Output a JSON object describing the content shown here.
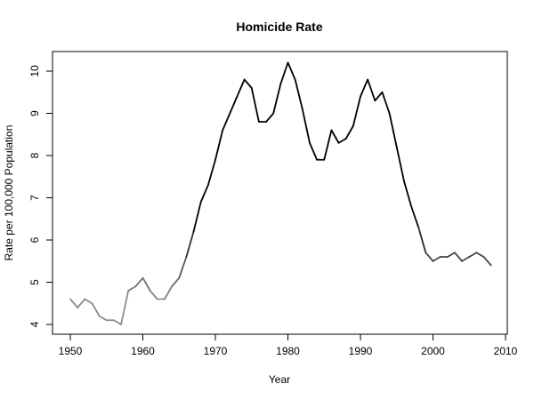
{
  "chart_data": {
    "type": "line",
    "title": "Homicide Rate",
    "xlabel": "Year",
    "ylabel": "Rate per 100,000 Population",
    "xlim": [
      1948,
      2010.2
    ],
    "ylim": [
      3.77,
      10.45
    ],
    "xticks": [
      1950,
      1960,
      1970,
      1980,
      1990,
      2000,
      2010
    ],
    "yticks": [
      4,
      5,
      6,
      7,
      8,
      9,
      10
    ],
    "grid": false,
    "x": [
      1950,
      1951,
      1952,
      1953,
      1954,
      1955,
      1956,
      1957,
      1958,
      1959,
      1960,
      1961,
      1962,
      1963,
      1964,
      1965,
      1966,
      1967,
      1968,
      1969,
      1970,
      1971,
      1972,
      1973,
      1974,
      1975,
      1976,
      1977,
      1978,
      1979,
      1980,
      1981,
      1982,
      1983,
      1984,
      1985,
      1986,
      1987,
      1988,
      1989,
      1990,
      1991,
      1992,
      1993,
      1994,
      1995,
      1996,
      1997,
      1998,
      1999,
      2000,
      2001,
      2002,
      2003,
      2004,
      2005,
      2006,
      2007,
      2008
    ],
    "series": [
      {
        "name": "Homicide Rate",
        "values": [
          4.6,
          4.4,
          4.6,
          4.5,
          4.2,
          4.1,
          4.1,
          4.0,
          4.8,
          4.9,
          5.1,
          4.8,
          4.6,
          4.6,
          4.9,
          5.1,
          5.6,
          6.2,
          6.9,
          7.3,
          7.9,
          8.6,
          9.0,
          9.4,
          9.8,
          9.6,
          8.8,
          8.8,
          9.0,
          9.7,
          10.2,
          9.8,
          9.1,
          8.3,
          7.9,
          7.9,
          8.6,
          8.3,
          8.4,
          8.7,
          9.4,
          9.8,
          9.3,
          9.5,
          9.0,
          8.2,
          7.4,
          6.8,
          6.3,
          5.7,
          5.5,
          5.6,
          5.6,
          5.7,
          5.5,
          5.6,
          5.7,
          5.6,
          5.4
        ]
      }
    ],
    "colors": {
      "low": "#8c8c8c",
      "high": "#000000"
    }
  }
}
